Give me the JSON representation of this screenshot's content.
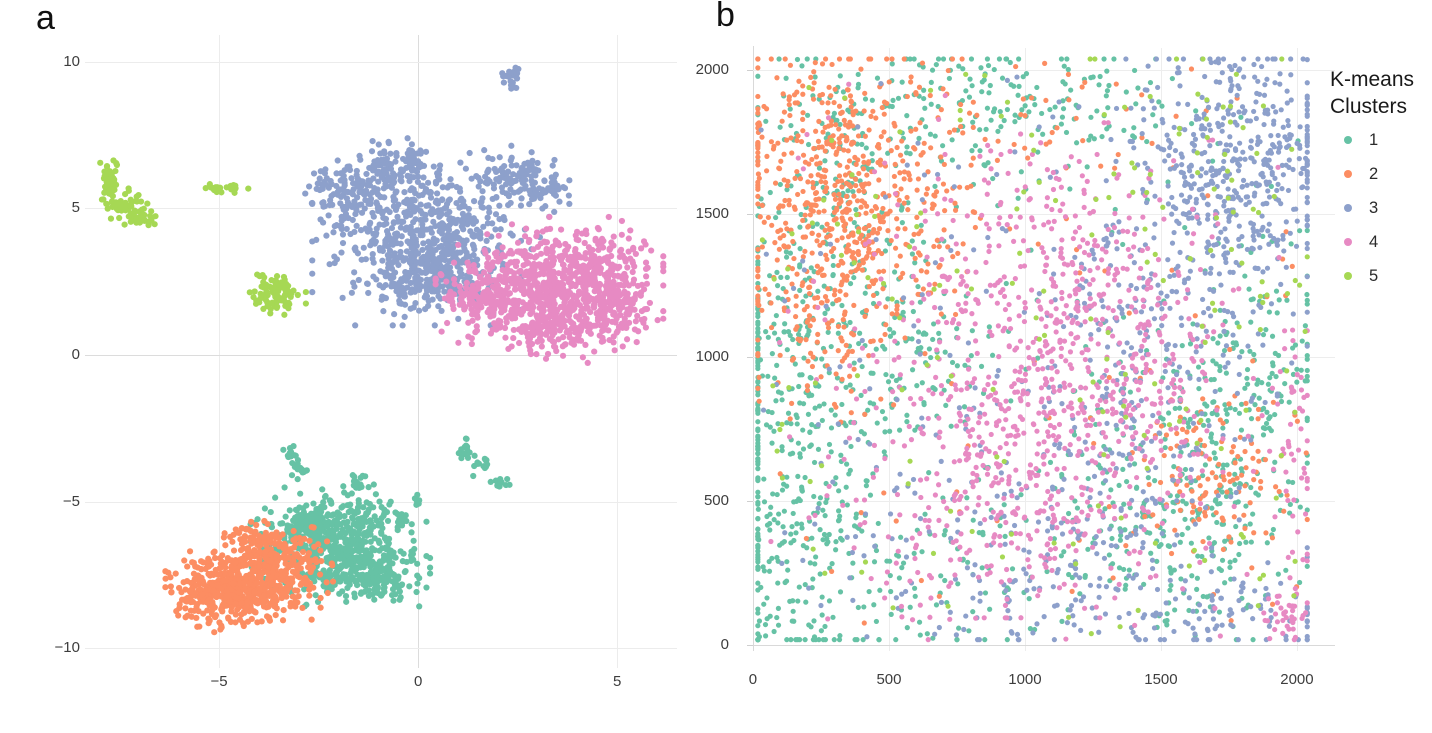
{
  "figure": {
    "background": "#ffffff",
    "grid_color": "#ececec",
    "axis_color": "#d9d9d9",
    "tick_label_color": "#3d3d3d",
    "cluster_colors": [
      "#66c2a5",
      "#fc8d62",
      "#8da0cb",
      "#e78ac3",
      "#a6d854"
    ]
  },
  "chart_data": [
    {
      "type": "scatter",
      "panel_label": "a",
      "title": "",
      "xlabel": "",
      "ylabel": "",
      "x_range": [
        -8.37,
        6.58
      ],
      "y_range": [
        -10.17,
        10.92
      ],
      "grid": true,
      "marker_px": 3.1,
      "seed": 20240501,
      "x_ticks": [
        {
          "v": -5,
          "label": "−5"
        },
        {
          "v": 0,
          "label": "0"
        },
        {
          "v": 5,
          "label": "5"
        }
      ],
      "y_ticks": [
        {
          "v": 10,
          "label": "10"
        },
        {
          "v": 5,
          "label": "5"
        },
        {
          "v": 0,
          "label": "0"
        },
        {
          "v": -5,
          "label": "−5"
        },
        {
          "v": -10,
          "label": "−10"
        }
      ],
      "series": [
        {
          "name": "1",
          "color": "#66c2a5",
          "blobs": [
            {
              "cx": -2.0,
              "cy": -6.5,
              "sx": 0.85,
              "sy": 0.8,
              "n": 600
            },
            {
              "cx": -2.9,
              "cy": -5.9,
              "sx": 0.45,
              "sy": 0.35,
              "n": 90
            },
            {
              "cx": -1.0,
              "cy": -7.6,
              "sx": 0.5,
              "sy": 0.4,
              "n": 120
            },
            {
              "cx": -3.2,
              "cy": -3.4,
              "sx": 0.09,
              "sy": 0.2,
              "n": 14
            },
            {
              "cx": -3.0,
              "cy": -3.95,
              "sx": 0.1,
              "sy": 0.14,
              "n": 12
            },
            {
              "cx": -1.55,
              "cy": -4.35,
              "sx": 0.09,
              "sy": 0.18,
              "n": 14
            },
            {
              "cx": 1.2,
              "cy": -3.2,
              "sx": 0.1,
              "sy": 0.2,
              "n": 14
            },
            {
              "cx": 1.55,
              "cy": -3.7,
              "sx": 0.12,
              "sy": 0.18,
              "n": 12
            },
            {
              "cx": 2.05,
              "cy": -4.35,
              "sx": 0.14,
              "sy": 0.12,
              "n": 12
            },
            {
              "cx": -0.35,
              "cy": -5.55,
              "sx": 0.13,
              "sy": 0.1,
              "n": 12
            },
            {
              "cx": 0.0,
              "cy": -5.05,
              "sx": 0.05,
              "sy": 0.12,
              "n": 6
            }
          ]
        },
        {
          "name": "2",
          "color": "#fc8d62",
          "blobs": [
            {
              "cx": -4.4,
              "cy": -7.9,
              "sx": 0.75,
              "sy": 0.6,
              "n": 420
            },
            {
              "cx": -3.5,
              "cy": -7.2,
              "sx": 0.55,
              "sy": 0.55,
              "n": 200
            },
            {
              "cx": -5.2,
              "cy": -8.2,
              "sx": 0.45,
              "sy": 0.45,
              "n": 110
            },
            {
              "cx": -4.1,
              "cy": -6.4,
              "sx": 0.3,
              "sy": 0.35,
              "n": 70
            }
          ]
        },
        {
          "name": "3",
          "color": "#8da0cb",
          "blobs": [
            {
              "cx": 0.2,
              "cy": 4.0,
              "sx": 1.1,
              "sy": 1.15,
              "n": 620
            },
            {
              "cx": 0.4,
              "cy": 2.6,
              "sx": 0.85,
              "sy": 0.5,
              "n": 160
            },
            {
              "cx": -1.8,
              "cy": 5.6,
              "sx": 0.45,
              "sy": 0.5,
              "n": 110
            },
            {
              "cx": -0.9,
              "cy": 6.4,
              "sx": 0.28,
              "sy": 0.45,
              "n": 60
            },
            {
              "cx": -0.15,
              "cy": 6.6,
              "sx": 0.22,
              "sy": 0.32,
              "n": 40
            },
            {
              "cx": 2.5,
              "cy": 6.1,
              "sx": 0.5,
              "sy": 0.4,
              "n": 110
            },
            {
              "cx": 3.3,
              "cy": 5.5,
              "sx": 0.28,
              "sy": 0.32,
              "n": 40
            },
            {
              "cx": 2.35,
              "cy": 9.5,
              "sx": 0.13,
              "sy": 0.22,
              "n": 26
            }
          ]
        },
        {
          "name": "4",
          "color": "#e78ac3",
          "blobs": [
            {
              "cx": 3.3,
              "cy": 2.5,
              "sx": 1.1,
              "sy": 0.85,
              "n": 650
            },
            {
              "cx": 4.6,
              "cy": 2.3,
              "sx": 0.6,
              "sy": 0.75,
              "n": 200
            },
            {
              "cx": 3.3,
              "cy": 0.9,
              "sx": 0.75,
              "sy": 0.45,
              "n": 160
            },
            {
              "cx": 1.7,
              "cy": 1.9,
              "sx": 0.5,
              "sy": 0.4,
              "n": 100
            },
            {
              "cx": 5.3,
              "cy": 1.2,
              "sx": 0.3,
              "sy": 0.4,
              "n": 40
            }
          ]
        },
        {
          "name": "5",
          "color": "#a6d854",
          "blobs": [
            {
              "cx": -7.75,
              "cy": 5.85,
              "sx": 0.12,
              "sy": 0.38,
              "n": 60
            },
            {
              "cx": -7.35,
              "cy": 5.1,
              "sx": 0.22,
              "sy": 0.25,
              "n": 50
            },
            {
              "cx": -6.95,
              "cy": 4.65,
              "sx": 0.25,
              "sy": 0.12,
              "n": 30
            },
            {
              "cx": -4.9,
              "cy": 5.7,
              "sx": 0.3,
              "sy": 0.07,
              "n": 26
            },
            {
              "cx": -3.6,
              "cy": 2.1,
              "sx": 0.3,
              "sy": 0.28,
              "n": 90
            }
          ]
        }
      ]
    },
    {
      "type": "scatter",
      "panel_label": "b",
      "title": "",
      "xlabel": "",
      "ylabel": "",
      "x_range": [
        -44,
        2140
      ],
      "y_range": [
        -18,
        2111
      ],
      "grid": true,
      "marker_px": 2.6,
      "seed": 987654321,
      "clamp": [
        18,
        2038
      ],
      "x_ticks": [
        {
          "v": 0,
          "label": "0"
        },
        {
          "v": 500,
          "label": "500"
        },
        {
          "v": 1000,
          "label": "1000"
        },
        {
          "v": 1500,
          "label": "1500"
        },
        {
          "v": 2000,
          "label": "2000"
        }
      ],
      "y_ticks": [
        {
          "v": 2000,
          "label": "2000"
        },
        {
          "v": 1500,
          "label": "1500"
        },
        {
          "v": 1000,
          "label": "1000"
        },
        {
          "v": 500,
          "label": "500"
        },
        {
          "v": 0,
          "label": "0"
        }
      ],
      "legend": {
        "title_lines": [
          "K-means",
          "Clusters"
        ],
        "items": [
          {
            "label": "1",
            "color": "#66c2a5"
          },
          {
            "label": "2",
            "color": "#fc8d62"
          },
          {
            "label": "3",
            "color": "#8da0cb"
          },
          {
            "label": "4",
            "color": "#e78ac3"
          },
          {
            "label": "5",
            "color": "#a6d854"
          }
        ]
      },
      "series": [
        {
          "name": "1",
          "color": "#66c2a5",
          "blobs": [
            {
              "cx": 150,
              "cy": 450,
              "sx": 160,
              "sy": 300,
              "n": 290
            },
            {
              "cx": 120,
              "cy": 1050,
              "sx": 130,
              "sy": 230,
              "n": 120
            },
            {
              "cx": 300,
              "cy": 1700,
              "sx": 180,
              "sy": 190,
              "n": 140
            },
            {
              "cx": 480,
              "cy": 1050,
              "sx": 180,
              "sy": 220,
              "n": 150
            },
            {
              "cx": 1000,
              "cy": 1870,
              "sx": 330,
              "sy": 100,
              "n": 160
            },
            {
              "cx": 1560,
              "cy": 550,
              "sx": 230,
              "sy": 250,
              "n": 320
            },
            {
              "cx": 1900,
              "cy": 950,
              "sx": 130,
              "sy": 240,
              "n": 90
            },
            {
              "cx": 700,
              "cy": 280,
              "sx": 200,
              "sy": 160,
              "n": 80
            },
            {
              "u": 1,
              "n": 130
            }
          ]
        },
        {
          "name": "2",
          "color": "#fc8d62",
          "blobs": [
            {
              "cx": 290,
              "cy": 1630,
              "sx": 200,
              "sy": 240,
              "n": 470
            },
            {
              "cx": 230,
              "cy": 1150,
              "sx": 150,
              "sy": 180,
              "n": 130
            },
            {
              "cx": 520,
              "cy": 1420,
              "sx": 150,
              "sy": 170,
              "n": 90
            },
            {
              "cx": 1700,
              "cy": 560,
              "sx": 150,
              "sy": 150,
              "n": 120
            },
            {
              "cx": 1000,
              "cy": 1820,
              "sx": 300,
              "sy": 110,
              "n": 45
            },
            {
              "u": 1,
              "n": 70
            }
          ]
        },
        {
          "name": "3",
          "color": "#8da0cb",
          "blobs": [
            {
              "cx": 1780,
              "cy": 1650,
              "sx": 185,
              "sy": 235,
              "n": 480
            },
            {
              "cx": 1460,
              "cy": 1150,
              "sx": 180,
              "sy": 250,
              "n": 170
            },
            {
              "cx": 1320,
              "cy": 600,
              "sx": 180,
              "sy": 250,
              "n": 140
            },
            {
              "cx": 1700,
              "cy": 130,
              "sx": 290,
              "sy": 80,
              "n": 110
            },
            {
              "cx": 900,
              "cy": 150,
              "sx": 250,
              "sy": 90,
              "n": 55
            },
            {
              "cx": 620,
              "cy": 620,
              "sx": 200,
              "sy": 200,
              "n": 55
            },
            {
              "u": 1,
              "n": 110
            }
          ]
        },
        {
          "name": "4",
          "color": "#e78ac3",
          "blobs": [
            {
              "cx": 1000,
              "cy": 900,
              "sx": 280,
              "sy": 310,
              "n": 540
            },
            {
              "cx": 1200,
              "cy": 1350,
              "sx": 220,
              "sy": 180,
              "n": 180
            },
            {
              "cx": 930,
              "cy": 420,
              "sx": 250,
              "sy": 170,
              "n": 140
            },
            {
              "cx": 1450,
              "cy": 820,
              "sx": 150,
              "sy": 200,
              "n": 90
            },
            {
              "cx": 1990,
              "cy": 650,
              "sx": 45,
              "sy": 240,
              "n": 50
            },
            {
              "cx": 1960,
              "cy": 95,
              "sx": 45,
              "sy": 45,
              "n": 35
            },
            {
              "u": 1,
              "n": 80
            }
          ]
        },
        {
          "name": "5",
          "color": "#a6d854",
          "blobs": [
            {
              "cx": 1700,
              "cy": 1450,
              "sx": 260,
              "sy": 300,
              "n": 45
            },
            {
              "u": 1,
              "n": 145
            }
          ]
        }
      ]
    }
  ]
}
